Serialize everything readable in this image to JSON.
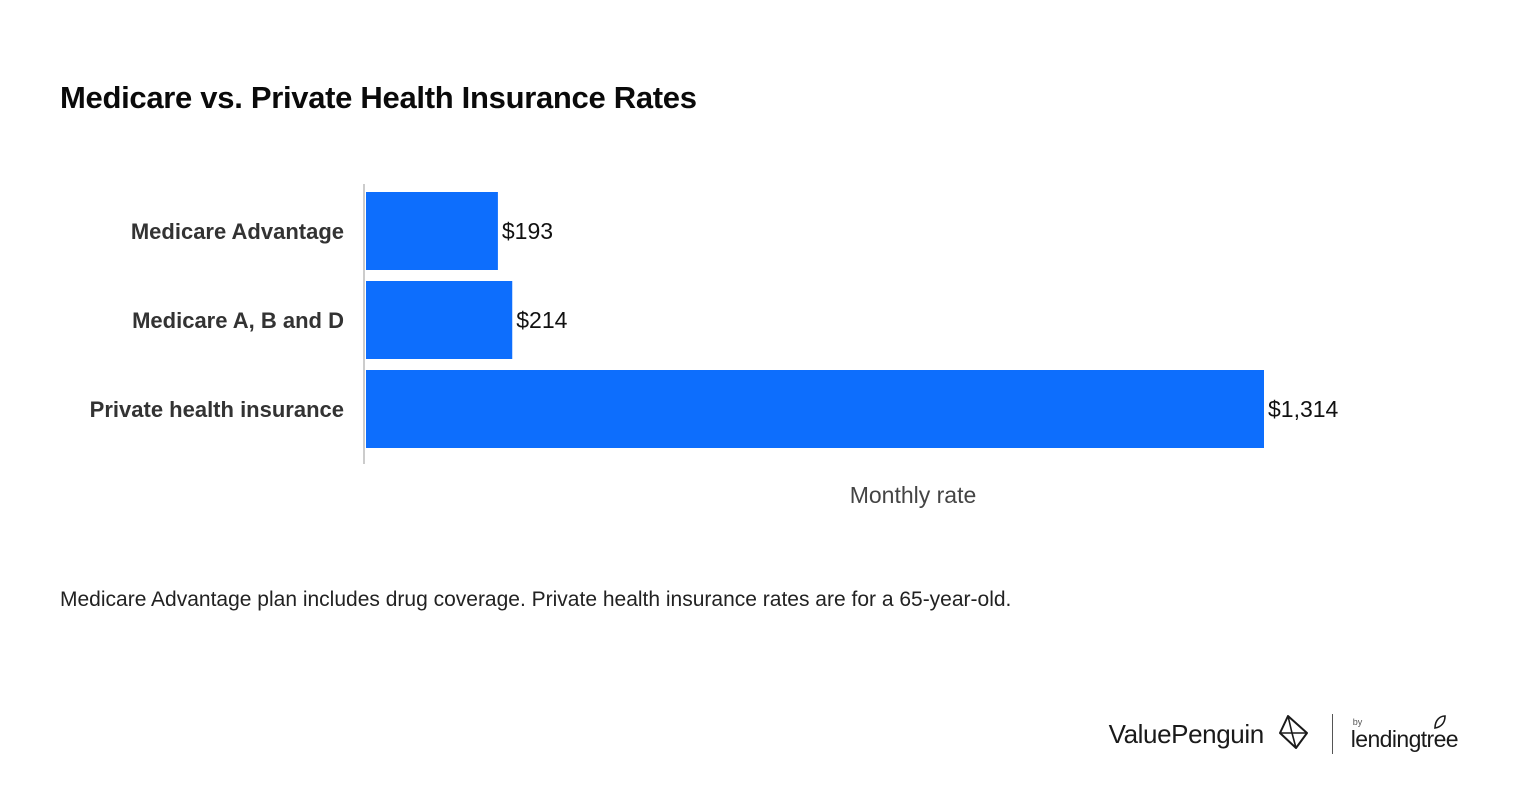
{
  "chart_data": {
    "type": "bar",
    "orientation": "horizontal",
    "title": "Medicare vs. Private Health Insurance Rates",
    "categories": [
      "Medicare Advantage",
      "Medicare A, B and D",
      "Private health insurance"
    ],
    "values": [
      193,
      214,
      1314
    ],
    "value_labels": [
      "$193",
      "$214",
      "$1,314"
    ],
    "xlabel": "Monthly rate",
    "ylabel": "",
    "xlim": [
      0,
      1314
    ],
    "grid": false,
    "legend": "none",
    "bar_color": "#0d6efd"
  },
  "footnote": "Medicare Advantage plan includes drug coverage. Private health insurance rates are for a 65-year-old.",
  "branding": {
    "valuepenguin": "ValuePenguin",
    "lendingtree_by": "by",
    "lendingtree": "lendingtree"
  }
}
